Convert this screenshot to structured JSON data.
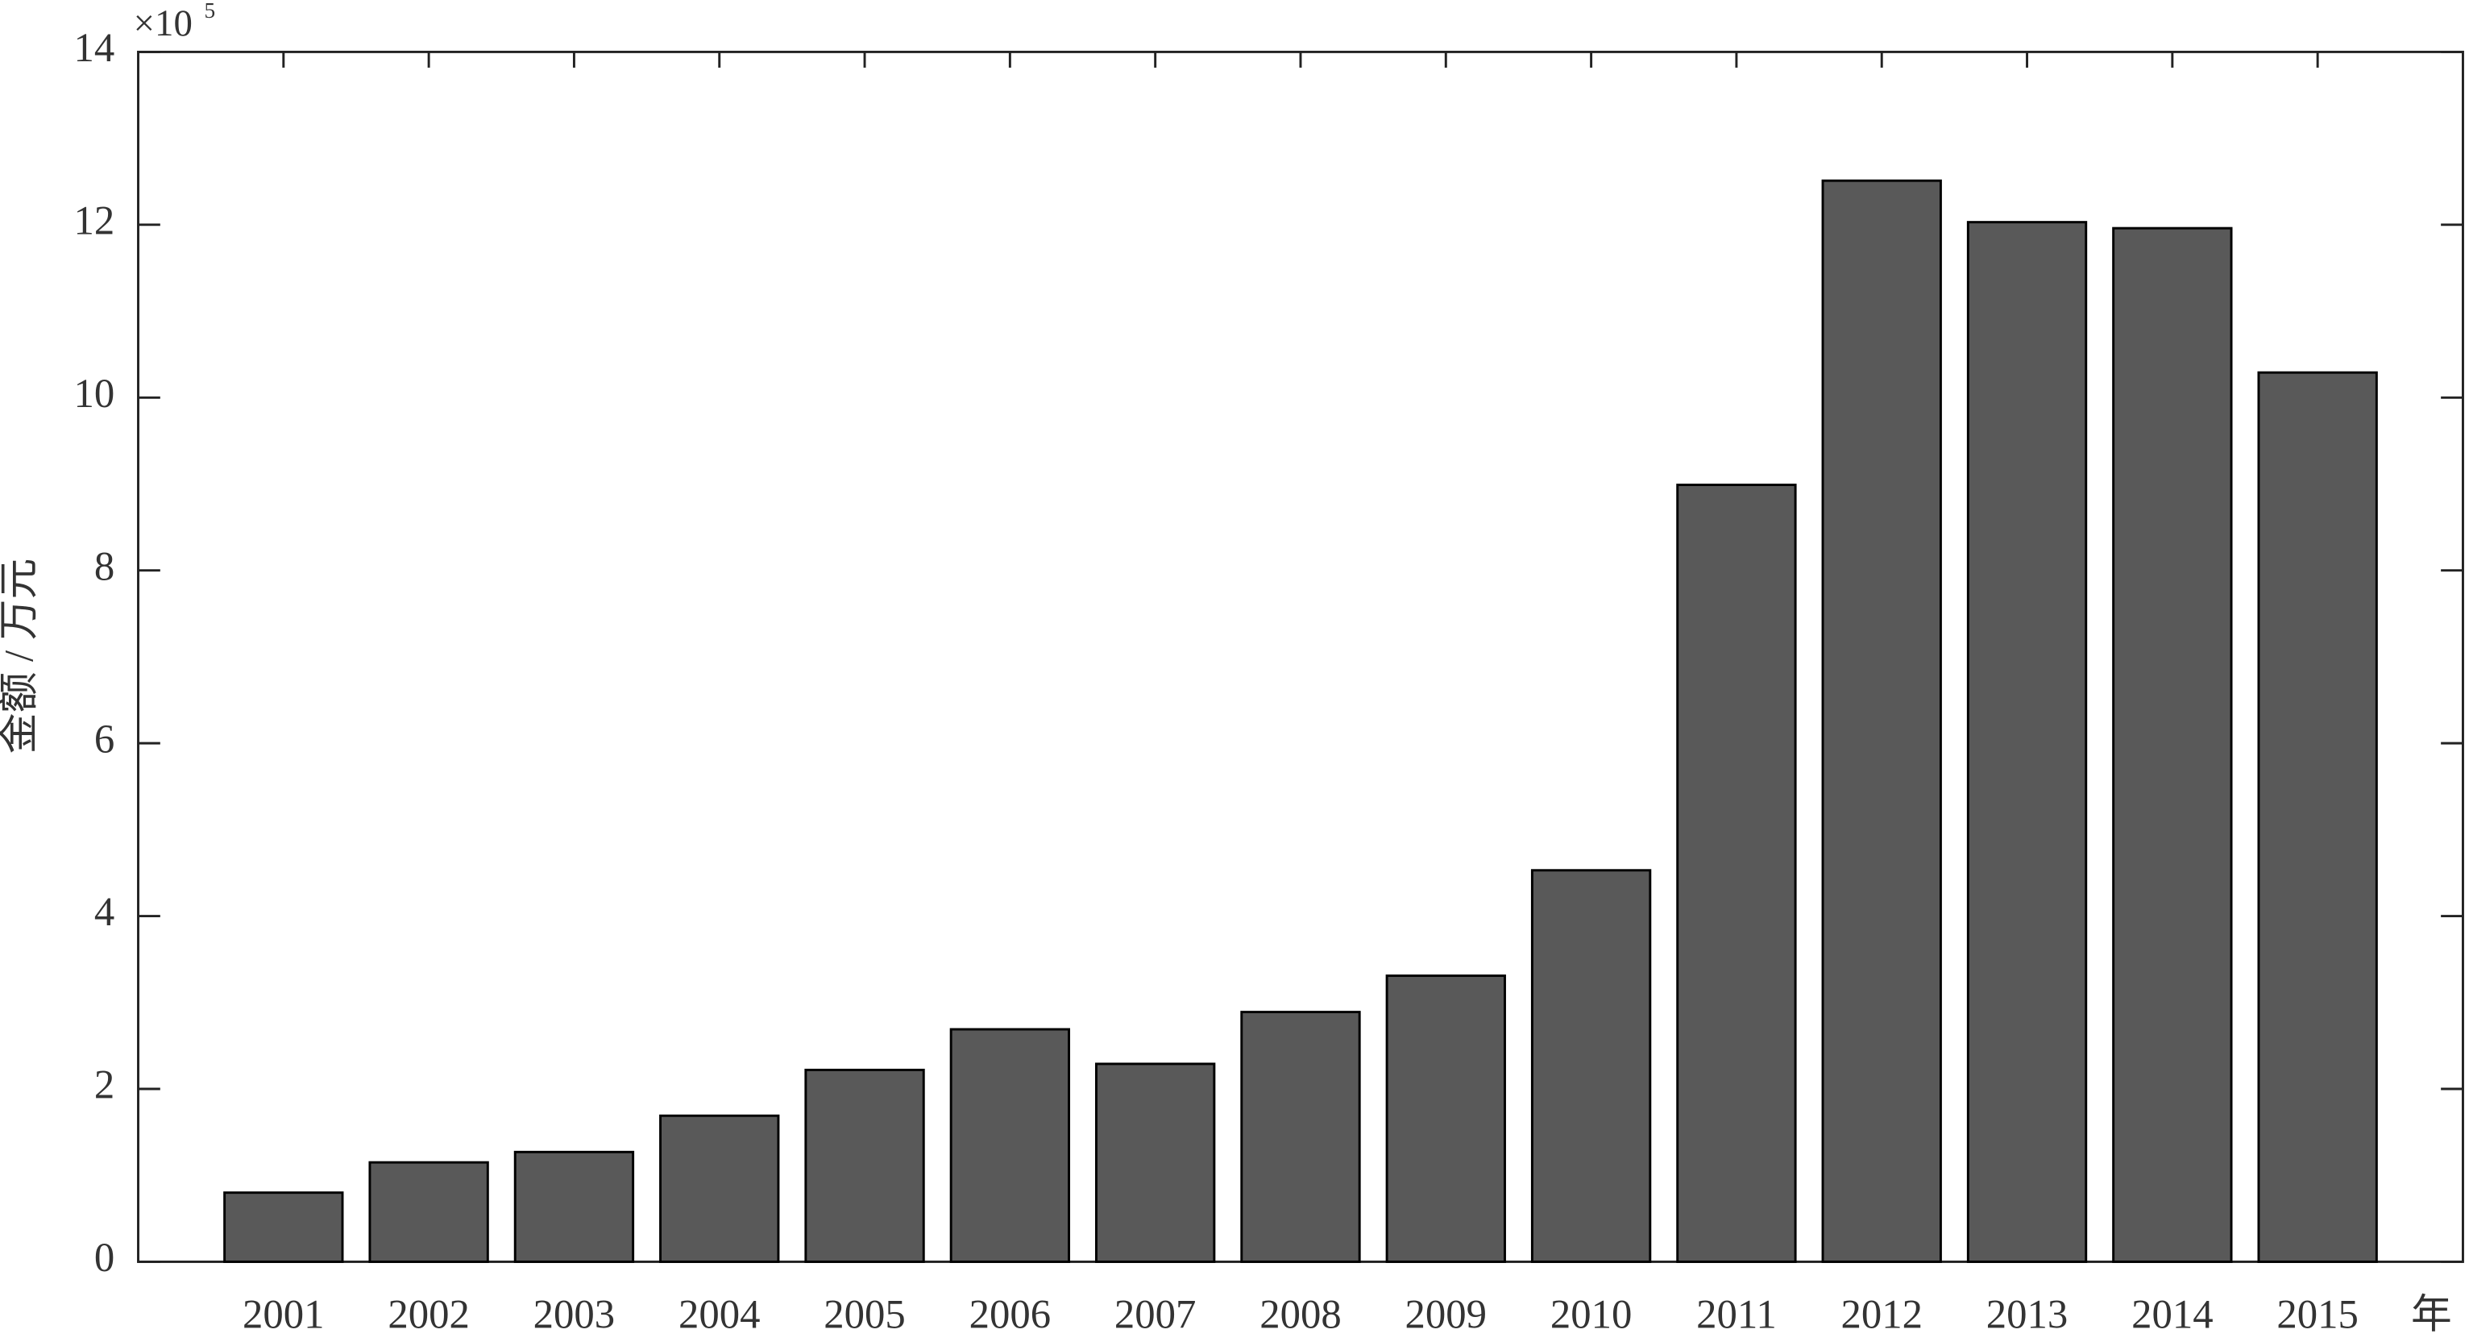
{
  "chart_data": {
    "type": "bar",
    "y_label": "金额 / 万元",
    "x_label": "年",
    "y_multiplier": {
      "base": "×10",
      "exponent": "5"
    },
    "categories": [
      "2001",
      "2002",
      "2003",
      "2004",
      "2005",
      "2006",
      "2007",
      "2008",
      "2009",
      "2010",
      "2011",
      "2012",
      "2013",
      "2014",
      "2015"
    ],
    "values": [
      0.8,
      1.15,
      1.27,
      1.69,
      2.22,
      2.69,
      2.29,
      2.89,
      3.31,
      4.53,
      8.99,
      12.51,
      12.03,
      11.96,
      10.29
    ],
    "color": "#595959",
    "ylim": [
      0,
      14
    ],
    "yticks": [
      0,
      2,
      4,
      6,
      8,
      10,
      12,
      14
    ]
  }
}
